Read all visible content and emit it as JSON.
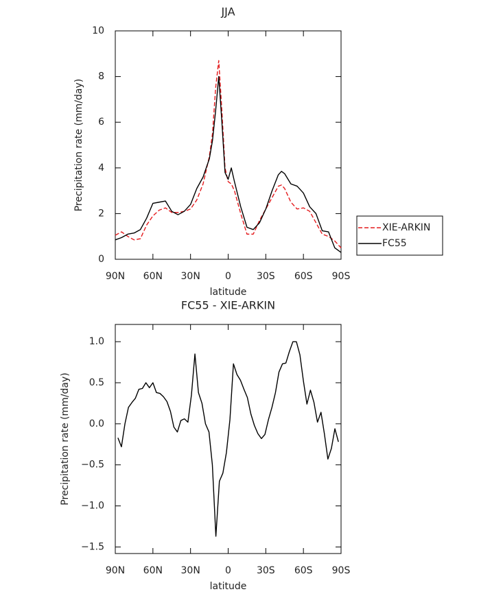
{
  "chart_data": [
    {
      "type": "line",
      "title": "JJA",
      "x_label": "latitude",
      "y_label": "Precipitation rate (mm/day)",
      "xlim": [
        90,
        -90
      ],
      "xticks": [
        {
          "value": 90,
          "label": "90N"
        },
        {
          "value": 60,
          "label": "60N"
        },
        {
          "value": 30,
          "label": "30N"
        },
        0,
        {
          "value": -30,
          "label": "30S"
        },
        {
          "value": -60,
          "label": "60S"
        },
        {
          "value": -90,
          "label": "90S"
        }
      ],
      "ylim": [
        0,
        10
      ],
      "yticks": [
        0,
        2,
        4,
        6,
        8,
        10
      ],
      "legend": "right",
      "x": [
        90,
        85,
        80,
        75,
        70,
        65,
        60,
        55,
        50,
        45,
        40,
        35,
        30,
        25,
        20,
        15,
        12.5,
        10,
        7.5,
        5,
        2.5,
        0,
        -2.5,
        -5,
        -10,
        -15,
        -20,
        -25,
        -30,
        -35,
        -40,
        -42.5,
        -45,
        -50,
        -55,
        -60,
        -65,
        -70,
        -75,
        -80,
        -85,
        -90
      ],
      "series": [
        {
          "name": "XIE-ARKIN",
          "color": "#e41a1c",
          "dashed": true,
          "values": [
            1.05,
            1.2,
            1.0,
            0.85,
            0.9,
            1.5,
            1.9,
            2.15,
            2.25,
            2.05,
            2.05,
            2.1,
            2.2,
            2.6,
            3.3,
            4.5,
            5.5,
            7.5,
            8.7,
            6.5,
            4.0,
            3.4,
            3.3,
            3.0,
            2.0,
            1.1,
            1.1,
            1.7,
            2.2,
            2.7,
            3.2,
            3.25,
            3.1,
            2.5,
            2.2,
            2.25,
            2.1,
            1.6,
            1.1,
            1.0,
            0.8,
            0.5
          ]
        },
        {
          "name": "FC55",
          "color": "#000000",
          "dashed": false,
          "values": [
            0.85,
            0.95,
            1.1,
            1.15,
            1.3,
            1.8,
            2.45,
            2.5,
            2.55,
            2.1,
            1.95,
            2.1,
            2.4,
            3.1,
            3.6,
            4.4,
            5.2,
            6.5,
            8.0,
            6.0,
            3.8,
            3.5,
            4.0,
            3.4,
            2.3,
            1.4,
            1.3,
            1.6,
            2.2,
            3.0,
            3.7,
            3.85,
            3.75,
            3.3,
            3.2,
            2.9,
            2.3,
            2.0,
            1.25,
            1.2,
            0.5,
            0.3
          ]
        }
      ]
    },
    {
      "type": "line",
      "title": "FC55 - XIE-ARKIN",
      "x_label": "latitude",
      "y_label": "Precipitation rate (mm/day)",
      "xlim": [
        90,
        -90
      ],
      "xticks": [
        {
          "value": 90,
          "label": "90N"
        },
        {
          "value": 60,
          "label": "60N"
        },
        {
          "value": 30,
          "label": "30N"
        },
        0,
        {
          "value": -30,
          "label": "30S"
        },
        {
          "value": -60,
          "label": "60S"
        },
        {
          "value": -90,
          "label": "90S"
        }
      ],
      "ylim": [
        -1.58,
        1.21
      ],
      "yticks": [
        {
          "value": -1.5,
          "label": "−1.5"
        },
        {
          "value": -1,
          "label": "−1.0"
        },
        {
          "value": -0.5,
          "label": "−0.5"
        },
        {
          "value": 0,
          "label": "0.0"
        },
        {
          "value": 0.5,
          "label": "0.5"
        },
        {
          "value": 1,
          "label": "1.0"
        }
      ],
      "x": [
        87.9,
        85.1,
        82.3,
        79.5,
        76.7,
        74.0,
        71.2,
        68.4,
        65.6,
        62.8,
        60.0,
        57.2,
        54.4,
        51.6,
        48.8,
        46.0,
        43.3,
        40.5,
        37.7,
        34.9,
        32.1,
        29.3,
        26.5,
        23.7,
        20.9,
        18.1,
        15.3,
        12.6,
        9.8,
        7.0,
        4.2,
        1.4,
        -1.4,
        -4.2,
        -7.0,
        -9.8,
        -12.6,
        -15.3,
        -18.1,
        -20.9,
        -23.7,
        -26.5,
        -29.3,
        -32.1,
        -34.9,
        -37.7,
        -40.5,
        -43.3,
        -46.0,
        -48.8,
        -51.6,
        -54.4,
        -57.2,
        -60.0,
        -62.8,
        -65.6,
        -68.4,
        -71.2,
        -74.0,
        -76.7,
        -79.5,
        -82.3,
        -85.1,
        -87.9
      ],
      "series": [
        {
          "name": "FC55 - XIE-ARKIN",
          "color": "#000000",
          "dashed": false,
          "values": [
            -0.17,
            -0.28,
            0.0,
            0.2,
            0.26,
            0.31,
            0.42,
            0.43,
            0.5,
            0.44,
            0.5,
            0.38,
            0.37,
            0.33,
            0.27,
            0.15,
            -0.04,
            -0.1,
            0.04,
            0.06,
            0.02,
            0.35,
            0.85,
            0.38,
            0.25,
            0.0,
            -0.1,
            -0.5,
            -1.37,
            -0.7,
            -0.6,
            -0.35,
            0.05,
            0.73,
            0.6,
            0.53,
            0.42,
            0.32,
            0.12,
            -0.02,
            -0.12,
            -0.18,
            -0.13,
            0.05,
            0.2,
            0.38,
            0.63,
            0.73,
            0.74,
            0.88,
            1.0,
            1.0,
            0.84,
            0.52,
            0.24,
            0.41,
            0.26,
            0.02,
            0.14,
            -0.12,
            -0.43,
            -0.3,
            -0.06,
            -0.22
          ]
        }
      ]
    }
  ]
}
